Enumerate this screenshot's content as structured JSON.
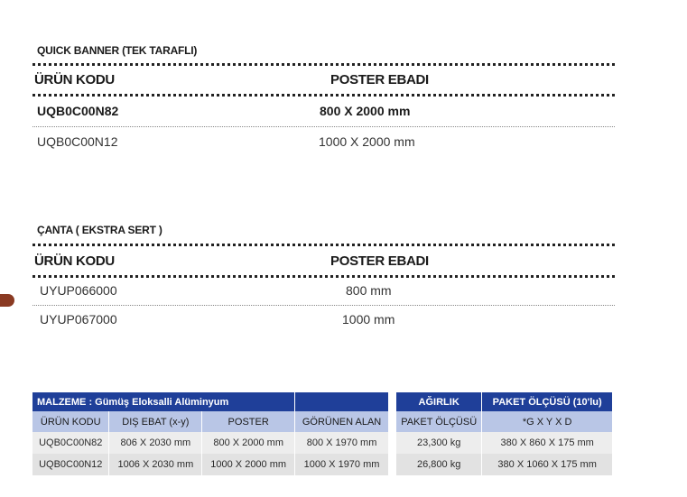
{
  "section1": {
    "title": "QUICK BANNER (TEK TARAFLI)",
    "col1": "ÜRÜN KODU",
    "col2": "POSTER EBADI",
    "rows": [
      {
        "code": "UQB0C00N82",
        "size": "800 X 2000 mm"
      },
      {
        "code": "UQB0C00N12",
        "size": "1000 X 2000 mm"
      }
    ]
  },
  "section2": {
    "title": "ÇANTA ( EKSTRA SERT )",
    "col1": "ÜRÜN KODU",
    "col2": "POSTER EBADI",
    "rows": [
      {
        "code": "UYUP066000",
        "size": "800 mm"
      },
      {
        "code": "UYUP067000",
        "size": "1000 mm"
      }
    ]
  },
  "spec_table": {
    "material": "MALZEME : Gümüş Eloksalli Alüminyum",
    "headers": [
      "ÜRÜN KODU",
      "DIŞ EBAT (x-y)",
      "POSTER",
      "GÖRÜNEN ALAN"
    ],
    "rows": [
      [
        "UQB0C00N82",
        "806 X 2030 mm",
        "800 X 2000 mm",
        "800 X 1970 mm"
      ],
      [
        "UQB0C00N12",
        "1006 X 2030 mm",
        "1000 X 2000 mm",
        "1000 X 1970 mm"
      ]
    ]
  },
  "pack_table": {
    "header1": "AĞIRLIK",
    "header2": "PAKET ÖLÇÜSÜ (10'lu)",
    "sub1": "PAKET ÖLÇÜSÜ",
    "sub2": "*G X Y X D",
    "rows": [
      [
        "23,300 kg",
        "380 X 860 X 175 mm"
      ],
      [
        "26,800 kg",
        "380 X 1060 X 175 mm"
      ]
    ]
  },
  "colors": {
    "header_blue": "#1f3f99",
    "subheader_blue": "#b9c6e6",
    "marker": "#8a3a22"
  }
}
